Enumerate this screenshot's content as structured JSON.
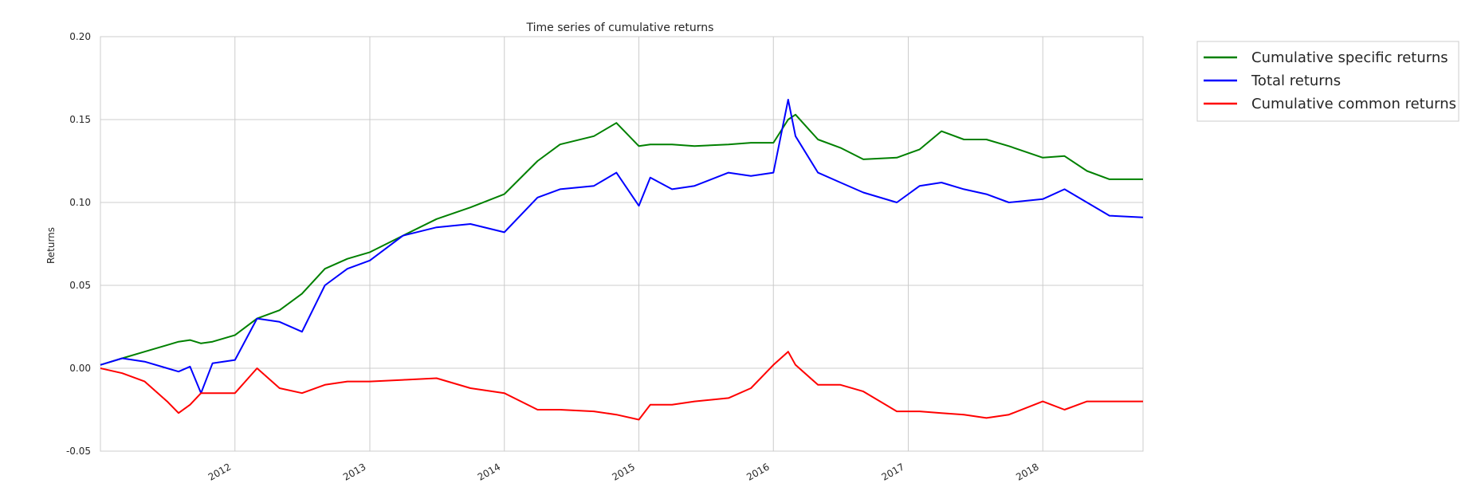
{
  "chart_data": {
    "type": "line",
    "title": "Time series of cumulative returns",
    "xlabel": "",
    "ylabel": "Returns",
    "xlim": [
      "2011-01-01",
      "2018-09-30"
    ],
    "ylim": [
      -0.05,
      0.2
    ],
    "grid": true,
    "legend_position": "outside-top-right",
    "x_ticks": [
      "2012",
      "2013",
      "2014",
      "2015",
      "2016",
      "2017",
      "2018"
    ],
    "y_ticks": [
      "-0.05",
      "0.00",
      "0.05",
      "0.10",
      "0.15",
      "0.20"
    ],
    "x": [
      "2011-01-01",
      "2011-03-01",
      "2011-05-01",
      "2011-07-01",
      "2011-08-01",
      "2011-09-01",
      "2011-10-01",
      "2011-11-01",
      "2012-01-01",
      "2012-03-01",
      "2012-05-01",
      "2012-07-01",
      "2012-09-01",
      "2012-11-01",
      "2013-01-01",
      "2013-04-01",
      "2013-07-01",
      "2013-10-01",
      "2014-01-01",
      "2014-04-01",
      "2014-06-01",
      "2014-09-01",
      "2014-11-01",
      "2015-01-01",
      "2015-02-01",
      "2015-04-01",
      "2015-06-01",
      "2015-09-01",
      "2015-11-01",
      "2016-01-01",
      "2016-02-10",
      "2016-03-01",
      "2016-05-01",
      "2016-07-01",
      "2016-09-01",
      "2016-12-01",
      "2017-02-01",
      "2017-04-01",
      "2017-06-01",
      "2017-08-01",
      "2017-10-01",
      "2018-01-01",
      "2018-03-01",
      "2018-05-01",
      "2018-07-01",
      "2018-09-30"
    ],
    "series": [
      {
        "name": "Cumulative specific returns",
        "color": "#008000",
        "values": [
          0.002,
          0.006,
          0.01,
          0.014,
          0.016,
          0.017,
          0.015,
          0.016,
          0.02,
          0.03,
          0.035,
          0.045,
          0.06,
          0.066,
          0.07,
          0.08,
          0.09,
          0.097,
          0.105,
          0.125,
          0.135,
          0.14,
          0.148,
          0.134,
          0.135,
          0.135,
          0.134,
          0.135,
          0.136,
          0.136,
          0.15,
          0.153,
          0.138,
          0.133,
          0.126,
          0.127,
          0.132,
          0.143,
          0.138,
          0.138,
          0.134,
          0.127,
          0.128,
          0.119,
          0.114,
          0.114
        ]
      },
      {
        "name": "Total returns",
        "color": "#0000ff",
        "values": [
          0.002,
          0.006,
          0.004,
          0.0,
          -0.002,
          0.001,
          -0.015,
          0.003,
          0.005,
          0.03,
          0.028,
          0.022,
          0.05,
          0.06,
          0.065,
          0.08,
          0.085,
          0.087,
          0.082,
          0.103,
          0.108,
          0.11,
          0.118,
          0.098,
          0.115,
          0.108,
          0.11,
          0.118,
          0.116,
          0.118,
          0.162,
          0.14,
          0.118,
          0.112,
          0.106,
          0.1,
          0.11,
          0.112,
          0.108,
          0.105,
          0.1,
          0.102,
          0.108,
          0.1,
          0.092,
          0.091
        ]
      },
      {
        "name": "Cumulative common returns",
        "color": "#ff0000",
        "values": [
          0.0,
          -0.003,
          -0.008,
          -0.02,
          -0.027,
          -0.022,
          -0.015,
          -0.015,
          -0.015,
          0.0,
          -0.012,
          -0.015,
          -0.01,
          -0.008,
          -0.008,
          -0.007,
          -0.006,
          -0.012,
          -0.015,
          -0.025,
          -0.025,
          -0.026,
          -0.028,
          -0.031,
          -0.022,
          -0.022,
          -0.02,
          -0.018,
          -0.012,
          0.002,
          0.01,
          0.002,
          -0.01,
          -0.01,
          -0.014,
          -0.026,
          -0.026,
          -0.027,
          -0.028,
          -0.03,
          -0.028,
          -0.02,
          -0.025,
          -0.02,
          -0.02,
          -0.02
        ]
      }
    ]
  }
}
